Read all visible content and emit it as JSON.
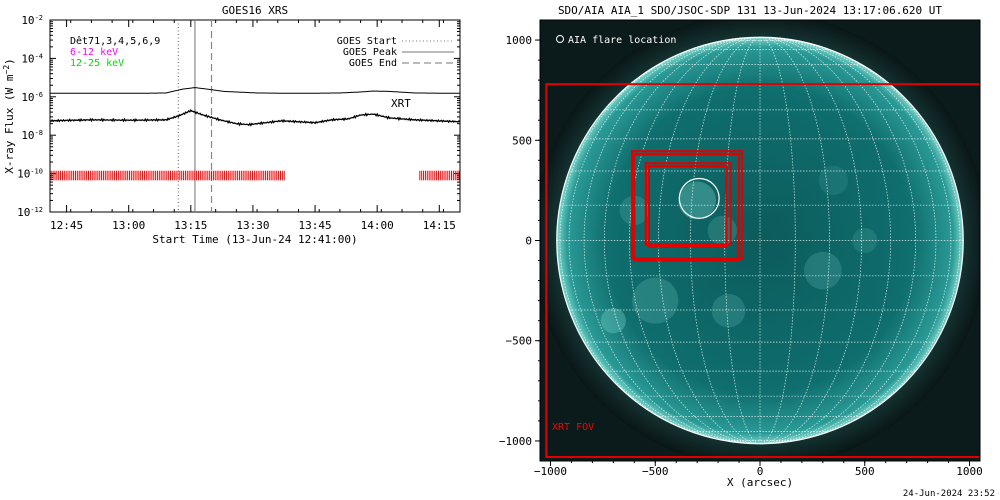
{
  "chart_data": [
    {
      "type": "line",
      "title": "GOES16 XRS",
      "xlabel": "Start Time (13-Jun-24 12:41:00)",
      "ylabel": "X-ray Flux (W m^-2)",
      "yscale": "log",
      "ylim": [
        1e-12,
        0.01
      ],
      "xlim_minutes": [
        0,
        99
      ],
      "x_ticks": [
        {
          "label": "12:45",
          "minutes": 4
        },
        {
          "label": "13:00",
          "minutes": 19
        },
        {
          "label": "13:15",
          "minutes": 34
        },
        {
          "label": "13:30",
          "minutes": 49
        },
        {
          "label": "13:45",
          "minutes": 64
        },
        {
          "label": "14:00",
          "minutes": 79
        },
        {
          "label": "14:15",
          "minutes": 94
        }
      ],
      "y_ticks": [
        {
          "mantissa": "10",
          "exp": "-2",
          "log": -2
        },
        {
          "mantissa": "10",
          "exp": "-4",
          "log": -4
        },
        {
          "mantissa": "10",
          "exp": "-6",
          "log": -6
        },
        {
          "mantissa": "10",
          "exp": "-8",
          "log": -8
        },
        {
          "mantissa": "10",
          "exp": "-10",
          "log": -10
        },
        {
          "mantissa": "10",
          "exp": "-12",
          "log": -12
        }
      ],
      "info_lines": [
        {
          "text": "Dêt71,3,4,5,6,9",
          "color": "#000000"
        },
        {
          "text": "6-12 keV",
          "color": "#ff00ff"
        },
        {
          "text": "12-25 keV",
          "color": "#00dd00"
        }
      ],
      "legend": {
        "position": "top-right",
        "entries": [
          {
            "label": "GOES Start",
            "style": "dotted"
          },
          {
            "label": "GOES Peak",
            "style": "solid"
          },
          {
            "label": "GOES End",
            "style": "dashed"
          }
        ]
      },
      "annotation": {
        "text": "XRT",
        "color": "#ff0000"
      },
      "markers": {
        "goes_start_min": 31,
        "goes_peak_min": 35,
        "goes_end_min": 39
      },
      "series": [
        {
          "band": "long",
          "color": "#000000",
          "points": [
            [
              0,
              -5.82
            ],
            [
              10,
              -5.82
            ],
            [
              20,
              -5.82
            ],
            [
              28,
              -5.8
            ],
            [
              32,
              -5.6
            ],
            [
              35,
              -5.52
            ],
            [
              38,
              -5.6
            ],
            [
              42,
              -5.72
            ],
            [
              50,
              -5.8
            ],
            [
              60,
              -5.82
            ],
            [
              70,
              -5.8
            ],
            [
              75,
              -5.75
            ],
            [
              78,
              -5.7
            ],
            [
              82,
              -5.72
            ],
            [
              88,
              -5.8
            ],
            [
              99,
              -5.82
            ]
          ]
        },
        {
          "band": "short",
          "color": "#000000",
          "points": [
            [
              0,
              -7.25
            ],
            [
              10,
              -7.2
            ],
            [
              20,
              -7.22
            ],
            [
              28,
              -7.2
            ],
            [
              31,
              -7.0
            ],
            [
              34,
              -6.72
            ],
            [
              37,
              -6.95
            ],
            [
              41,
              -7.2
            ],
            [
              45,
              -7.4
            ],
            [
              48,
              -7.45
            ],
            [
              52,
              -7.35
            ],
            [
              56,
              -7.25
            ],
            [
              60,
              -7.3
            ],
            [
              64,
              -7.35
            ],
            [
              68,
              -7.2
            ],
            [
              72,
              -7.15
            ],
            [
              75,
              -6.95
            ],
            [
              78,
              -6.9
            ],
            [
              82,
              -7.1
            ],
            [
              88,
              -7.2
            ],
            [
              99,
              -7.3
            ]
          ]
        }
      ],
      "observation_bars": {
        "color": "#ff0000",
        "intervals_min": [
          [
            0,
            57
          ],
          [
            89,
            99
          ]
        ]
      }
    },
    {
      "type": "heatmap",
      "title": "SDO/AIA AIA_1 SDO/JSOC-SDP 131 13-Jun-2024 13:17:06.620 UT",
      "xlabel": "X (arcsec)",
      "ylabel": "",
      "xlim": [
        -1050,
        1050
      ],
      "ylim": [
        -1100,
        1100
      ],
      "x_ticks": [
        -1000,
        -500,
        0,
        500,
        1000
      ],
      "y_ticks": [
        1000,
        500,
        0,
        -500,
        -1000
      ],
      "x_tick_labels": [
        "−1000",
        "−500",
        "0",
        "500",
        "1000"
      ],
      "y_tick_labels": [
        "1000",
        "500",
        "0",
        "−500",
        "−1000"
      ],
      "solar_radius_arcsec": 970,
      "flare_legend": "AIA flare location",
      "flare_location": {
        "x": -290,
        "y": 210,
        "radius": 95
      },
      "xrt_fov": {
        "label": "XRT FOV",
        "x0": -1020,
        "x1": 1070,
        "y0": -1080,
        "y1": 780,
        "color": "#ff0000"
      },
      "xrt_boxes": [
        {
          "x0": -610,
          "x1": -85,
          "y0": -90,
          "y1": 445
        },
        {
          "x0": -600,
          "x1": -100,
          "y0": -100,
          "y1": 430
        },
        {
          "x0": -545,
          "x1": -140,
          "y0": -20,
          "y1": 385
        },
        {
          "x0": -530,
          "x1": -160,
          "y0": -30,
          "y1": 370
        }
      ],
      "colors": {
        "disk": "#0f6e6e",
        "grid": "#ffffff",
        "box": "#e00000"
      }
    }
  ],
  "footer": {
    "timestamp": "24-Jun-2024 23:52"
  }
}
